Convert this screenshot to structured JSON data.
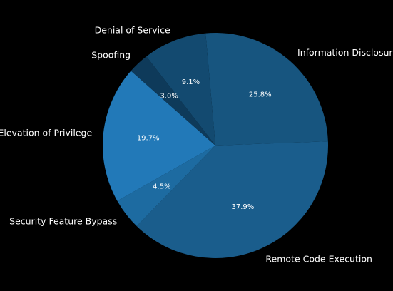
{
  "chart_data": {
    "type": "pie",
    "title": "",
    "categories": [
      "Information Disclosure",
      "Remote Code Execution",
      "Security Feature Bypass",
      "Elevation of Privilege",
      "Spoofing",
      "Denial of Service"
    ],
    "values": [
      25.8,
      37.9,
      4.5,
      19.7,
      3.0,
      9.1
    ],
    "percent_labels": [
      "25.8%",
      "37.9%",
      "4.5%",
      "19.7%",
      "3.0%",
      "9.1%"
    ],
    "colors": [
      "#17557f",
      "#1a5d8c",
      "#1d6ba1",
      "#2279b8",
      "#0e3a5a",
      "#134a70"
    ],
    "start_angle_deg": 95,
    "direction": "clockwise",
    "legend": "none",
    "background": "#000000",
    "text_color": "#ffffff"
  }
}
